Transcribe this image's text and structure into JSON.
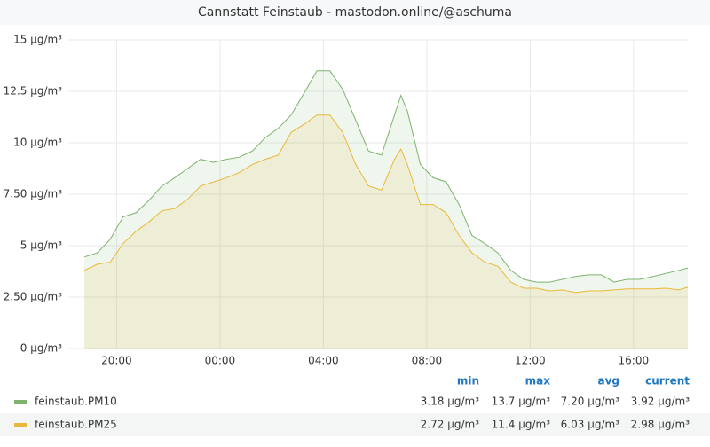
{
  "chart_data": {
    "type": "area",
    "title": "Cannstatt Feinstaub - mastodon.online/@aschuma",
    "x": [
      18.75,
      19.25,
      19.75,
      20.25,
      20.75,
      21.25,
      21.75,
      22.25,
      22.75,
      23.25,
      23.75,
      24.25,
      24.75,
      25.25,
      25.75,
      26.25,
      26.75,
      27.25,
      27.75,
      28.25,
      28.75,
      29.25,
      29.75,
      30.25,
      30.75,
      31,
      31.25,
      31.75,
      32.25,
      32.75,
      33.25,
      33.75,
      34.25,
      34.75,
      35.25,
      35.75,
      36.25,
      36.75,
      37.25,
      37.75,
      38.25,
      38.75,
      39.25,
      39.75,
      40.25,
      40.75,
      41.25,
      41.75,
      42.1
    ],
    "xlim": [
      18.75,
      42.1
    ],
    "xticks": [
      {
        "value": 20,
        "label": "20:00"
      },
      {
        "value": 24,
        "label": "00:00"
      },
      {
        "value": 28,
        "label": "04:00"
      },
      {
        "value": 32,
        "label": "08:00"
      },
      {
        "value": 36,
        "label": "12:00"
      },
      {
        "value": 40,
        "label": "16:00"
      }
    ],
    "ylim": [
      0,
      15
    ],
    "yticks": [
      {
        "value": 0,
        "label": "0 µg/m³"
      },
      {
        "value": 2.5,
        "label": "2.50 µg/m³"
      },
      {
        "value": 5,
        "label": "5 µg/m³"
      },
      {
        "value": 7.5,
        "label": "7.50 µg/m³"
      },
      {
        "value": 10,
        "label": "10 µg/m³"
      },
      {
        "value": 12.5,
        "label": "12.5 µg/m³"
      },
      {
        "value": 15,
        "label": "15 µg/m³"
      }
    ],
    "grid": true,
    "legend_columns": [
      "min",
      "max",
      "avg",
      "current"
    ],
    "series": [
      {
        "name": "feinstaub.PM10",
        "color": "#7eb26d",
        "values": [
          4.45,
          4.65,
          5.3,
          6.4,
          6.6,
          7.2,
          7.9,
          8.3,
          8.75,
          9.2,
          9.05,
          9.2,
          9.3,
          9.6,
          10.25,
          10.7,
          11.35,
          12.4,
          13.5,
          13.5,
          12.6,
          11.1,
          9.6,
          9.4,
          11.35,
          12.3,
          11.55,
          8.95,
          8.3,
          8.1,
          7.0,
          5.5,
          5.1,
          4.65,
          3.8,
          3.36,
          3.23,
          3.23,
          3.36,
          3.5,
          3.58,
          3.58,
          3.23,
          3.36,
          3.36,
          3.5,
          3.65,
          3.8,
          3.92
        ],
        "legend_values": [
          "3.18 µg/m³",
          "13.7 µg/m³",
          "7.20 µg/m³",
          "3.92 µg/m³"
        ]
      },
      {
        "name": "feinstaub.PM25",
        "color": "#eab839",
        "values": [
          3.8,
          4.1,
          4.2,
          5.1,
          5.7,
          6.15,
          6.7,
          6.8,
          7.25,
          7.9,
          8.1,
          8.3,
          8.55,
          8.95,
          9.2,
          9.4,
          10.5,
          10.9,
          11.35,
          11.35,
          10.5,
          8.95,
          7.9,
          7.7,
          9.2,
          9.7,
          8.95,
          7.0,
          7.0,
          6.6,
          5.5,
          4.65,
          4.2,
          4.0,
          3.23,
          2.93,
          2.93,
          2.8,
          2.85,
          2.72,
          2.8,
          2.8,
          2.85,
          2.9,
          2.9,
          2.9,
          2.93,
          2.85,
          2.98
        ],
        "legend_values": [
          "2.72 µg/m³",
          "11.4 µg/m³",
          "6.03 µg/m³",
          "2.98 µg/m³"
        ]
      }
    ]
  }
}
